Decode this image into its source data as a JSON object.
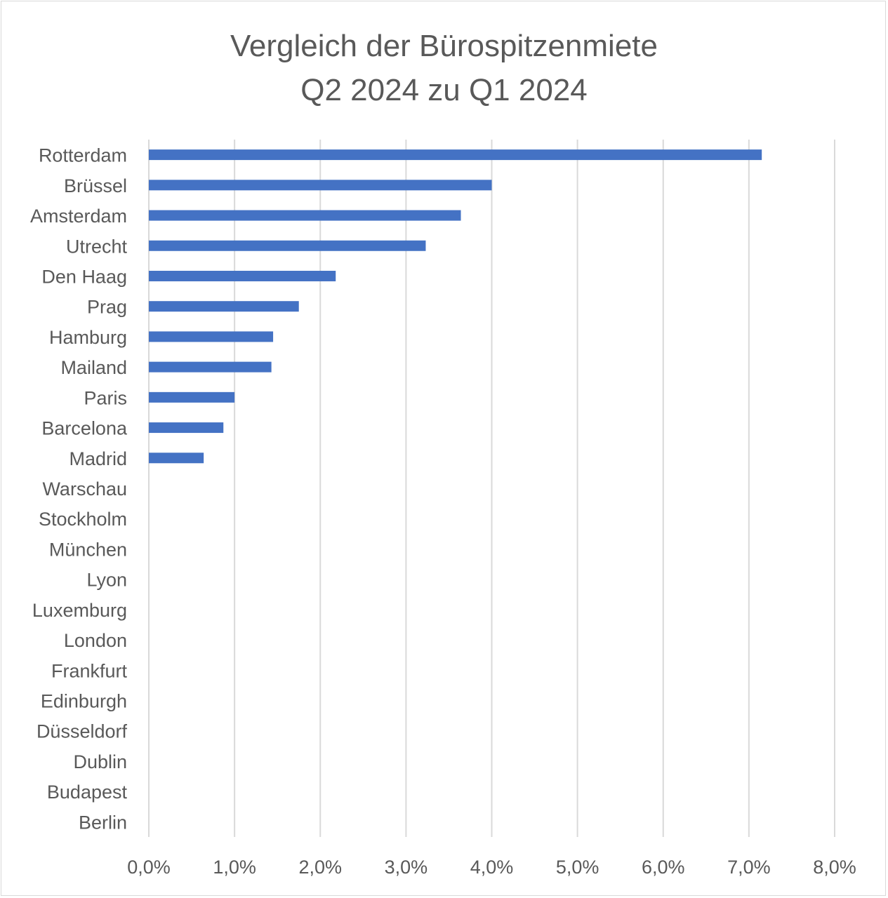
{
  "chart_data": {
    "type": "bar",
    "orientation": "horizontal",
    "title": "Vergleich der Bürospitzenmiete",
    "subtitle": "Q2 2024 zu Q1 2024",
    "categories": [
      "Rotterdam",
      "Brüssel",
      "Amsterdam",
      "Utrecht",
      "Den Haag",
      "Prag",
      "Hamburg",
      "Mailand",
      "Paris",
      "Barcelona",
      "Madrid",
      "Warschau",
      "Stockholm",
      "München",
      "Lyon",
      "Luxemburg",
      "London",
      "Frankfurt",
      "Edinburgh",
      "Düsseldorf",
      "Dublin",
      "Budapest",
      "Berlin"
    ],
    "values": [
      7.15,
      4.0,
      3.64,
      3.23,
      2.18,
      1.75,
      1.45,
      1.43,
      1.0,
      0.87,
      0.64,
      0,
      0,
      0,
      0,
      0,
      0,
      0,
      0,
      0,
      0,
      0,
      0
    ],
    "xlim": [
      0,
      8
    ],
    "xticks": [
      0,
      1,
      2,
      3,
      4,
      5,
      6,
      7,
      8
    ],
    "xtick_labels": [
      "0,0%",
      "1,0%",
      "2,0%",
      "3,0%",
      "4,0%",
      "5,0%",
      "6,0%",
      "7,0%",
      "8,0%"
    ],
    "xlabel": "",
    "ylabel": "",
    "grid": "vertical",
    "legend": "none",
    "bar_color": "#4472c4",
    "grid_color": "#d9d9d9",
    "text_color": "#595959"
  }
}
